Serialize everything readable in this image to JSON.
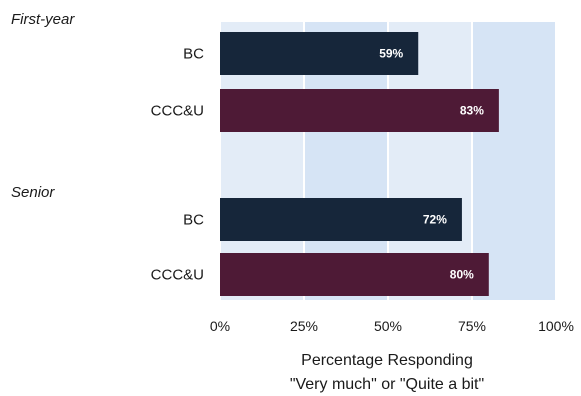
{
  "chart_data": {
    "type": "bar",
    "orientation": "horizontal",
    "groups": [
      {
        "label": "First-year",
        "bars": [
          {
            "category": "BC",
            "value": 59,
            "label": "59%",
            "color": "#16263a"
          },
          {
            "category": "CCC&U",
            "value": 83,
            "label": "83%",
            "color": "#4e1a36"
          }
        ]
      },
      {
        "label": "Senior",
        "bars": [
          {
            "category": "BC",
            "value": 72,
            "label": "72%",
            "color": "#16263a"
          },
          {
            "category": "CCC&U",
            "value": 80,
            "label": "80%",
            "color": "#4e1a36"
          }
        ]
      }
    ],
    "xlim": [
      0,
      100
    ],
    "xticks": [
      {
        "value": 0,
        "label": "0%"
      },
      {
        "value": 25,
        "label": "25%"
      },
      {
        "value": 50,
        "label": "50%"
      },
      {
        "value": 75,
        "label": "75%"
      },
      {
        "value": 100,
        "label": "100%"
      }
    ],
    "xlabel_lines": [
      "Percentage Responding",
      "\"Very much\" or \"Quite a bit\""
    ],
    "grid": true,
    "background_colors": [
      "#e3ecf7",
      "#d6e4f5"
    ]
  }
}
